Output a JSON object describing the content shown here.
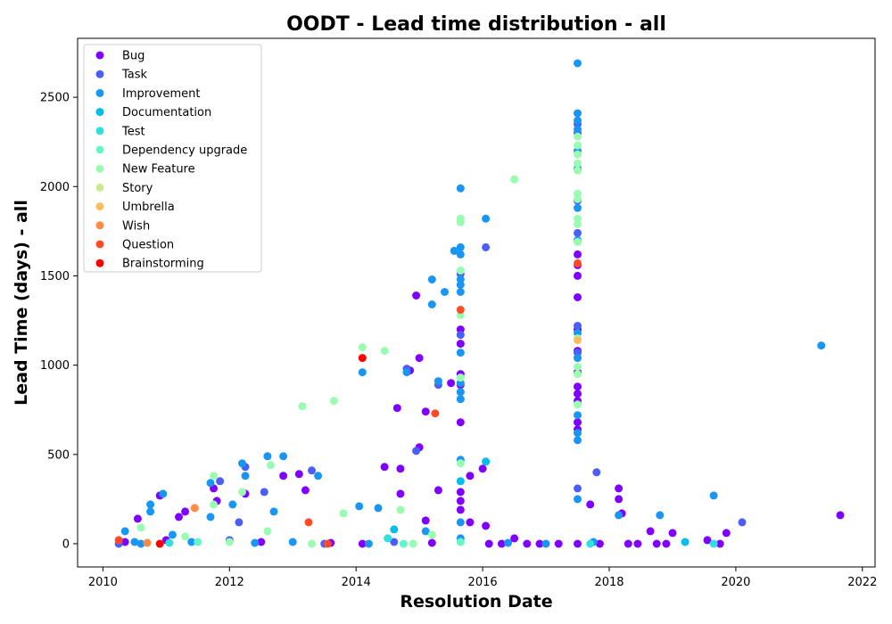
{
  "chart_data": {
    "type": "scatter",
    "title": "OODT - Lead time distribution - all",
    "xlabel": "Resolution Date",
    "ylabel": "Lead Time (days) - all",
    "xlim": [
      2009.6,
      2022.2
    ],
    "ylim": [
      -130,
      2830
    ],
    "x_ticks": [
      2010,
      2012,
      2014,
      2016,
      2018,
      2020,
      2022
    ],
    "y_ticks": [
      0,
      500,
      1000,
      1500,
      2000,
      2500
    ],
    "grid": false,
    "legend_position": "top-left",
    "series": [
      {
        "name": "Bug",
        "color": "#8000ff",
        "points": [
          [
            2010.55,
            140
          ],
          [
            2010.9,
            270
          ],
          [
            2011.2,
            150
          ],
          [
            2011.3,
            180
          ],
          [
            2011.75,
            310
          ],
          [
            2011.8,
            240
          ],
          [
            2012.25,
            280
          ],
          [
            2012.85,
            380
          ],
          [
            2013.1,
            390
          ],
          [
            2013.2,
            300
          ],
          [
            2014.45,
            430
          ],
          [
            2014.65,
            760
          ],
          [
            2014.7,
            420
          ],
          [
            2014.7,
            280
          ],
          [
            2014.85,
            970
          ],
          [
            2014.95,
            1390
          ],
          [
            2015.0,
            1040
          ],
          [
            2015.0,
            540
          ],
          [
            2015.1,
            740
          ],
          [
            2015.1,
            130
          ],
          [
            2015.3,
            300
          ],
          [
            2015.5,
            900
          ],
          [
            2015.65,
            1200
          ],
          [
            2015.65,
            1120
          ],
          [
            2015.65,
            950
          ],
          [
            2015.65,
            890
          ],
          [
            2015.65,
            680
          ],
          [
            2015.65,
            290
          ],
          [
            2015.65,
            240
          ],
          [
            2015.65,
            190
          ],
          [
            2015.8,
            120
          ],
          [
            2015.8,
            380
          ],
          [
            2016.0,
            420
          ],
          [
            2016.05,
            100
          ],
          [
            2016.1,
            0
          ],
          [
            2016.5,
            30
          ],
          [
            2016.9,
            0
          ],
          [
            2017.2,
            0
          ],
          [
            2017.5,
            1620
          ],
          [
            2017.5,
            1560
          ],
          [
            2017.5,
            1500
          ],
          [
            2017.5,
            1380
          ],
          [
            2017.5,
            1200
          ],
          [
            2017.5,
            1080
          ],
          [
            2017.5,
            960
          ],
          [
            2017.5,
            880
          ],
          [
            2017.5,
            840
          ],
          [
            2017.5,
            800
          ],
          [
            2017.5,
            680
          ],
          [
            2017.5,
            640
          ],
          [
            2017.5,
            0
          ],
          [
            2017.7,
            220
          ],
          [
            2017.85,
            0
          ],
          [
            2018.15,
            310
          ],
          [
            2018.15,
            250
          ],
          [
            2018.2,
            170
          ],
          [
            2018.3,
            0
          ],
          [
            2018.45,
            0
          ],
          [
            2018.65,
            70
          ],
          [
            2018.75,
            0
          ],
          [
            2018.9,
            0
          ],
          [
            2019.0,
            60
          ],
          [
            2019.55,
            20
          ],
          [
            2019.75,
            0
          ],
          [
            2019.85,
            60
          ],
          [
            2021.65,
            160
          ],
          [
            2010.35,
            10
          ],
          [
            2011.0,
            20
          ],
          [
            2012.5,
            10
          ],
          [
            2013.6,
            5
          ],
          [
            2014.1,
            0
          ],
          [
            2015.2,
            5
          ],
          [
            2016.3,
            0
          ],
          [
            2016.7,
            0
          ]
        ]
      },
      {
        "name": "Task",
        "color": "#4b5ff7",
        "points": [
          [
            2010.25,
            0
          ],
          [
            2011.85,
            350
          ],
          [
            2012.15,
            120
          ],
          [
            2012.25,
            430
          ],
          [
            2012.55,
            290
          ],
          [
            2013.3,
            410
          ],
          [
            2014.8,
            980
          ],
          [
            2014.95,
            520
          ],
          [
            2015.3,
            890
          ],
          [
            2015.65,
            1510
          ],
          [
            2015.65,
            1170
          ],
          [
            2016.05,
            1660
          ],
          [
            2017.5,
            2350
          ],
          [
            2017.5,
            2300
          ],
          [
            2017.5,
            1920
          ],
          [
            2017.5,
            1740
          ],
          [
            2017.5,
            1220
          ],
          [
            2017.5,
            1070
          ],
          [
            2017.5,
            310
          ],
          [
            2017.8,
            400
          ],
          [
            2020.1,
            120
          ],
          [
            2012.0,
            20
          ],
          [
            2013.5,
            0
          ],
          [
            2014.6,
            10
          ]
        ]
      },
      {
        "name": "Improvement",
        "color": "#1996f3",
        "points": [
          [
            2010.35,
            70
          ],
          [
            2010.5,
            10
          ],
          [
            2010.75,
            180
          ],
          [
            2010.75,
            220
          ],
          [
            2010.95,
            280
          ],
          [
            2011.1,
            50
          ],
          [
            2011.7,
            340
          ],
          [
            2011.7,
            150
          ],
          [
            2012.05,
            220
          ],
          [
            2012.2,
            450
          ],
          [
            2012.25,
            380
          ],
          [
            2012.6,
            490
          ],
          [
            2012.7,
            180
          ],
          [
            2012.85,
            490
          ],
          [
            2013.4,
            380
          ],
          [
            2014.05,
            210
          ],
          [
            2014.1,
            960
          ],
          [
            2014.35,
            200
          ],
          [
            2014.8,
            960
          ],
          [
            2015.1,
            70
          ],
          [
            2015.2,
            1340
          ],
          [
            2015.2,
            1480
          ],
          [
            2015.3,
            910
          ],
          [
            2015.4,
            1410
          ],
          [
            2015.55,
            1640
          ],
          [
            2015.65,
            1990
          ],
          [
            2015.65,
            1660
          ],
          [
            2015.65,
            1620
          ],
          [
            2015.65,
            1480
          ],
          [
            2015.65,
            1450
          ],
          [
            2015.65,
            1410
          ],
          [
            2015.65,
            1070
          ],
          [
            2015.65,
            900
          ],
          [
            2015.65,
            850
          ],
          [
            2015.65,
            810
          ],
          [
            2015.65,
            470
          ],
          [
            2015.65,
            120
          ],
          [
            2015.65,
            30
          ],
          [
            2016.05,
            1820
          ],
          [
            2017.5,
            2690
          ],
          [
            2017.5,
            2410
          ],
          [
            2017.5,
            2370
          ],
          [
            2017.5,
            2320
          ],
          [
            2017.5,
            2200
          ],
          [
            2017.5,
            2100
          ],
          [
            2017.5,
            1880
          ],
          [
            2017.5,
            1700
          ],
          [
            2017.5,
            1180
          ],
          [
            2017.5,
            1040
          ],
          [
            2017.5,
            720
          ],
          [
            2017.5,
            620
          ],
          [
            2017.5,
            580
          ],
          [
            2017.5,
            250
          ],
          [
            2017.75,
            10
          ],
          [
            2018.15,
            160
          ],
          [
            2018.8,
            160
          ],
          [
            2019.65,
            270
          ],
          [
            2021.35,
            1110
          ],
          [
            2010.6,
            0
          ],
          [
            2011.4,
            10
          ],
          [
            2012.4,
            5
          ],
          [
            2013.0,
            10
          ],
          [
            2014.2,
            0
          ],
          [
            2016.4,
            5
          ],
          [
            2017.0,
            0
          ]
        ]
      },
      {
        "name": "Documentation",
        "color": "#00bdeb",
        "points": [
          [
            2015.65,
            350
          ],
          [
            2016.05,
            460
          ],
          [
            2014.6,
            80
          ],
          [
            2019.2,
            10
          ]
        ]
      },
      {
        "name": "Test",
        "color": "#32e0da",
        "points": [
          [
            2011.05,
            5
          ],
          [
            2014.5,
            30
          ],
          [
            2017.7,
            0
          ],
          [
            2019.65,
            0
          ]
        ]
      },
      {
        "name": "Dependency upgrade",
        "color": "#64f5c9",
        "points": [
          [
            2011.5,
            10
          ],
          [
            2014.75,
            0
          ],
          [
            2015.65,
            10
          ]
        ]
      },
      {
        "name": "New Feature",
        "color": "#99fcb0",
        "points": [
          [
            2010.6,
            90
          ],
          [
            2011.3,
            40
          ],
          [
            2011.75,
            380
          ],
          [
            2011.75,
            220
          ],
          [
            2012.2,
            290
          ],
          [
            2012.6,
            70
          ],
          [
            2012.65,
            440
          ],
          [
            2013.15,
            770
          ],
          [
            2013.65,
            800
          ],
          [
            2013.8,
            170
          ],
          [
            2014.1,
            1100
          ],
          [
            2014.45,
            1080
          ],
          [
            2014.7,
            190
          ],
          [
            2015.65,
            1820
          ],
          [
            2015.65,
            1800
          ],
          [
            2015.65,
            1530
          ],
          [
            2015.65,
            1280
          ],
          [
            2015.65,
            930
          ],
          [
            2015.65,
            450
          ],
          [
            2016.5,
            2040
          ],
          [
            2017.5,
            2280
          ],
          [
            2017.5,
            2230
          ],
          [
            2017.5,
            2180
          ],
          [
            2017.5,
            2130
          ],
          [
            2017.5,
            2090
          ],
          [
            2017.5,
            1960
          ],
          [
            2017.5,
            1930
          ],
          [
            2017.5,
            1820
          ],
          [
            2017.5,
            1790
          ],
          [
            2017.5,
            1690
          ],
          [
            2017.5,
            1150
          ],
          [
            2017.5,
            990
          ],
          [
            2017.5,
            950
          ],
          [
            2017.5,
            780
          ],
          [
            2010.9,
            0
          ],
          [
            2012.0,
            10
          ],
          [
            2013.3,
            0
          ],
          [
            2014.9,
            0
          ],
          [
            2015.2,
            50
          ]
        ]
      },
      {
        "name": "Story",
        "color": "#caea8c",
        "points": []
      },
      {
        "name": "Umbrella",
        "color": "#fbbc62",
        "points": [
          [
            2017.5,
            1140
          ]
        ]
      },
      {
        "name": "Wish",
        "color": "#ff8a48",
        "points": [
          [
            2011.45,
            200
          ],
          [
            2010.7,
            5
          ]
        ]
      },
      {
        "name": "Question",
        "color": "#ff4b26",
        "points": [
          [
            2010.25,
            20
          ],
          [
            2013.25,
            120
          ],
          [
            2015.25,
            730
          ],
          [
            2015.65,
            1310
          ],
          [
            2017.5,
            1570
          ],
          [
            2013.55,
            0
          ]
        ]
      },
      {
        "name": "Brainstorming",
        "color": "#ff0000",
        "points": [
          [
            2014.1,
            1040
          ],
          [
            2010.9,
            0
          ]
        ]
      }
    ]
  }
}
